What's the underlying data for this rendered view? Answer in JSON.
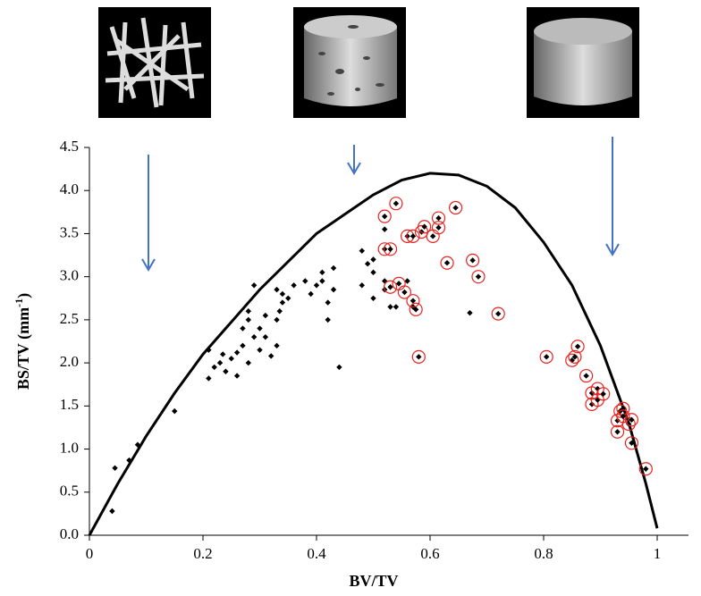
{
  "chart_data": {
    "type": "scatter",
    "x_label": "BV/TV",
    "y_label": [
      "BS/TV  (mm",
      "-1",
      ")"
    ],
    "xlim": [
      0,
      1
    ],
    "xticks": [
      0,
      0.2,
      0.4,
      0.6,
      0.8,
      1
    ],
    "ylim": [
      0,
      4.5
    ],
    "yticks": [
      {
        "value": 0,
        "label": "0.0"
      },
      0.5,
      {
        "value": 1,
        "label": "1.0"
      },
      1.5,
      {
        "value": 2,
        "label": "2.0"
      },
      2.5,
      {
        "value": 3,
        "label": "3.0"
      },
      3.5,
      {
        "value": 4,
        "label": "4.0"
      },
      4.5
    ],
    "curve": {
      "color": "#000000",
      "x": [
        0,
        0.05,
        0.1,
        0.15,
        0.2,
        0.3,
        0.4,
        0.5,
        0.55,
        0.6,
        0.65,
        0.7,
        0.75,
        0.8,
        0.85,
        0.9,
        0.95,
        0.98,
        1.0
      ],
      "values": [
        0,
        0.6,
        1.15,
        1.65,
        2.1,
        2.85,
        3.5,
        3.95,
        4.12,
        4.2,
        4.18,
        4.05,
        3.8,
        3.4,
        2.9,
        2.2,
        1.3,
        0.6,
        0.08
      ]
    },
    "series": [
      {
        "color": "#000000",
        "circled": false,
        "x": [
          0.04,
          0.045,
          0.07,
          0.085,
          0.15,
          0.21,
          0.21,
          0.22,
          0.23,
          0.235,
          0.24,
          0.25,
          0.26,
          0.26,
          0.27,
          0.27,
          0.28,
          0.28,
          0.28,
          0.29,
          0.29,
          0.3,
          0.3,
          0.31,
          0.31,
          0.32,
          0.33,
          0.33,
          0.33,
          0.335,
          0.34,
          0.34,
          0.35,
          0.36,
          0.38,
          0.39,
          0.4,
          0.41,
          0.41,
          0.42,
          0.42,
          0.43,
          0.43,
          0.44,
          0.48,
          0.48,
          0.49,
          0.5,
          0.5,
          0.5,
          0.52,
          0.52,
          0.52,
          0.53,
          0.54,
          0.56,
          0.57,
          0.67
        ],
        "values": [
          0.28,
          0.78,
          0.87,
          1.05,
          1.44,
          1.82,
          2.15,
          1.95,
          2.0,
          2.1,
          1.9,
          2.05,
          1.85,
          2.12,
          2.2,
          2.4,
          2.0,
          2.5,
          2.6,
          2.9,
          2.3,
          2.4,
          2.15,
          2.3,
          2.55,
          2.08,
          2.2,
          2.5,
          2.85,
          2.6,
          2.8,
          2.7,
          2.75,
          2.9,
          2.95,
          2.8,
          2.9,
          2.95,
          3.05,
          2.5,
          2.7,
          3.1,
          2.85,
          1.95,
          3.3,
          2.9,
          3.15,
          3.05,
          3.2,
          2.75,
          2.85,
          3.55,
          2.95,
          2.65,
          2.65,
          2.95,
          2.65,
          2.58
        ]
      },
      {
        "color": "#e8231f",
        "circled": true,
        "x": [
          0.52,
          0.54,
          0.52,
          0.53,
          0.53,
          0.545,
          0.555,
          0.56,
          0.57,
          0.57,
          0.575,
          0.58,
          0.585,
          0.59,
          0.605,
          0.615,
          0.615,
          0.63,
          0.645,
          0.675,
          0.685,
          0.72,
          0.805,
          0.85,
          0.855,
          0.86,
          0.875,
          0.885,
          0.885,
          0.895,
          0.895,
          0.905,
          0.93,
          0.93,
          0.935,
          0.94,
          0.94,
          0.95,
          0.955,
          0.955,
          0.98
        ],
        "values": [
          3.7,
          3.85,
          3.32,
          3.32,
          2.88,
          2.92,
          2.82,
          3.47,
          3.47,
          2.72,
          2.62,
          2.07,
          3.52,
          3.58,
          3.47,
          3.57,
          3.68,
          3.16,
          3.8,
          3.19,
          3.0,
          2.57,
          2.07,
          2.03,
          2.07,
          2.19,
          1.85,
          1.65,
          1.52,
          1.57,
          1.7,
          1.64,
          1.33,
          1.2,
          1.44,
          1.47,
          1.38,
          1.29,
          1.34,
          1.07,
          0.77
        ]
      }
    ]
  }
}
